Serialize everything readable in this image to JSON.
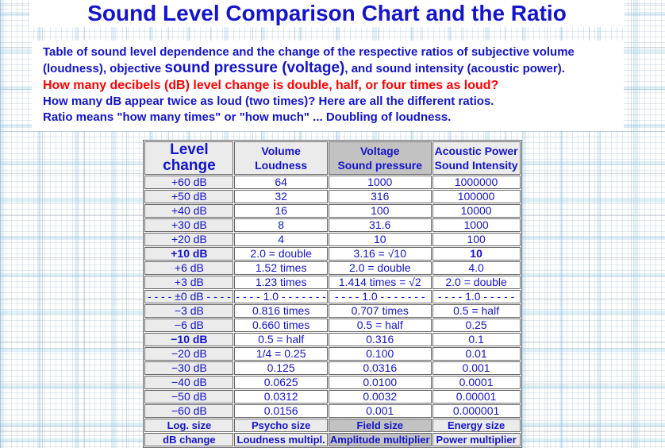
{
  "title": "Sound Level Comparison Chart and the Ratio",
  "intro": {
    "line1_pre": "Table of sound level dependence and the change of the respective ratios of subjective volume (loudness), objective ",
    "line1_big": "sound pressure (voltage)",
    "line1_post": ", and sound intensity (acoustic power).",
    "line2_red": "How many decibels (dB) level change is double, half, or four times as loud?",
    "line3": "How many dB appear twice as loud (two times)? Here are all the different ratios.",
    "line4": "Ratio means \"how many times\" or \"how much\" ... Doubling of loudness."
  },
  "table": {
    "headers": [
      {
        "lines": [
          "Level",
          "change"
        ]
      },
      {
        "lines": [
          "Volume",
          "Loudness"
        ]
      },
      {
        "lines": [
          "Voltage",
          "Sound pressure"
        ]
      },
      {
        "lines": [
          "Acoustic Power",
          "Sound Intensity"
        ]
      }
    ],
    "rows": [
      {
        "cells": [
          "+60 dB",
          "64",
          "1000",
          "1000000"
        ],
        "bold": []
      },
      {
        "cells": [
          "+50 dB",
          "32",
          "316",
          "100000"
        ],
        "bold": []
      },
      {
        "cells": [
          "+40 dB",
          "16",
          "100",
          "10000"
        ],
        "bold": []
      },
      {
        "cells": [
          "+30 dB",
          "8",
          "31.6",
          "1000"
        ],
        "bold": []
      },
      {
        "cells": [
          "+20 dB",
          "4",
          "10",
          "100"
        ],
        "bold": []
      },
      {
        "cells": [
          "+10 dB",
          "2.0 = double",
          "3.16 = √10",
          "10"
        ],
        "bold": [
          0,
          3
        ]
      },
      {
        "cells": [
          "+6 dB",
          "1.52 times",
          "2.0 = double",
          "4.0"
        ],
        "bold": []
      },
      {
        "cells": [
          "+3 dB",
          "1.23 times",
          "1.414 times = √2",
          "2.0 = double"
        ],
        "bold": []
      },
      {
        "cells": [
          "- - - - ±0 dB - - - -",
          "- - - - 1.0 - - - - - - -",
          "- - - - 1.0 - - - - - - -",
          "- - - - 1.0 - - - - -"
        ],
        "bold": []
      },
      {
        "cells": [
          "−3 dB",
          "0.816 times",
          "0.707 times",
          "0.5 = half"
        ],
        "bold": []
      },
      {
        "cells": [
          "−6 dB",
          "0.660 times",
          "0.5 = half",
          "0.25"
        ],
        "bold": []
      },
      {
        "cells": [
          "−10 dB",
          "0.5 = half",
          "0.316",
          "0.1"
        ],
        "bold": [
          0
        ]
      },
      {
        "cells": [
          "−20 dB",
          "1/4 = 0.25",
          "0.100",
          "0.01"
        ],
        "bold": []
      },
      {
        "cells": [
          "−30 dB",
          "0.125",
          "0.0316",
          "0.001"
        ],
        "bold": []
      },
      {
        "cells": [
          "−40 dB",
          "0.0625",
          "0.0100",
          "0.0001"
        ],
        "bold": []
      },
      {
        "cells": [
          "−50 dB",
          "0.0312",
          "0.0032",
          "0.00001"
        ],
        "bold": []
      },
      {
        "cells": [
          "−60 dB",
          "0.0156",
          "0.001",
          "0.000001"
        ],
        "bold": []
      }
    ],
    "footer_rows": [
      [
        "Log. size",
        "Psycho size",
        "Field size",
        "Energy size"
      ],
      [
        "dB change",
        "Loudness multipl.",
        "Amplitude multiplier",
        "Power multiplier"
      ]
    ]
  },
  "colors": {
    "text_blue": "#1414cc",
    "highlight_red": "#ff0000",
    "cell_gray_light": "#ebebeb",
    "cell_gray_dark": "#c2c2c2",
    "border_gray": "#676767",
    "page_white": "#ffffff"
  }
}
